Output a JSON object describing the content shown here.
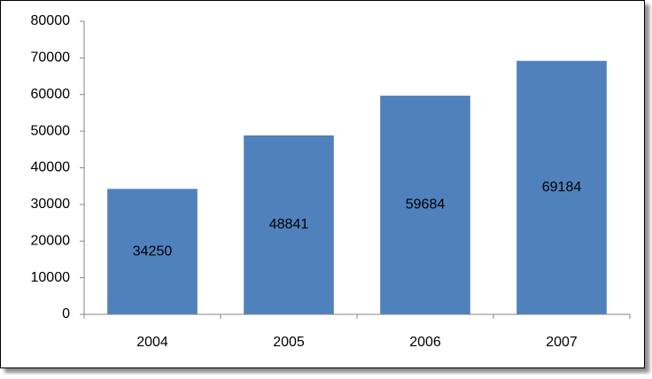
{
  "chart_data": {
    "type": "bar",
    "categories": [
      "2004",
      "2005",
      "2006",
      "2007"
    ],
    "values": [
      34250,
      48841,
      59684,
      69184
    ],
    "color": "#4f81bd",
    "ylim": [
      0,
      80000
    ],
    "yticks": [
      0,
      10000,
      20000,
      30000,
      40000,
      50000,
      60000,
      70000,
      80000
    ],
    "grid": false,
    "data_labels": true
  }
}
